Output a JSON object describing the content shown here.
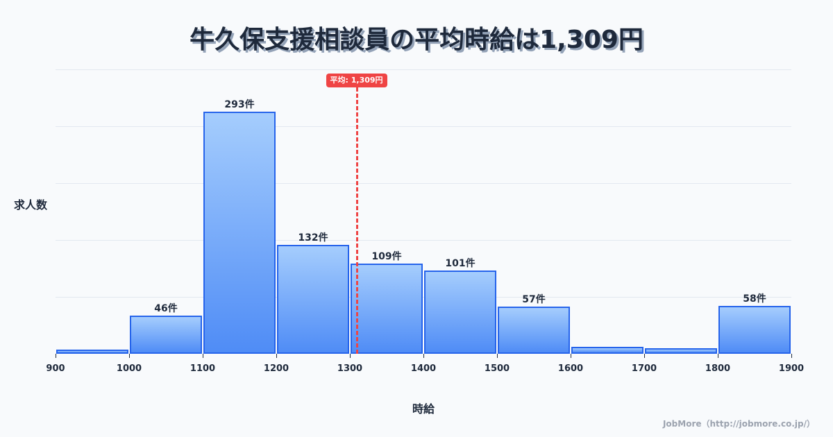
{
  "title": "牛久保支援相談員の平均時給は1,309円",
  "chart_data": {
    "type": "bar",
    "title": "牛久保支援相談員の平均時給は1,309円",
    "xlabel": "時給",
    "ylabel": "求人数",
    "bins": [
      {
        "from": 900,
        "to": 1000,
        "value": 5,
        "label": ""
      },
      {
        "from": 1000,
        "to": 1100,
        "value": 46,
        "label": "46件"
      },
      {
        "from": 1100,
        "to": 1200,
        "value": 293,
        "label": "293件"
      },
      {
        "from": 1200,
        "to": 1300,
        "value": 132,
        "label": "132件"
      },
      {
        "from": 1300,
        "to": 1400,
        "value": 109,
        "label": "109件"
      },
      {
        "from": 1400,
        "to": 1500,
        "value": 101,
        "label": "101件"
      },
      {
        "from": 1500,
        "to": 1600,
        "value": 57,
        "label": "57件"
      },
      {
        "from": 1600,
        "to": 1700,
        "value": 8,
        "label": ""
      },
      {
        "from": 1700,
        "to": 1800,
        "value": 7,
        "label": ""
      },
      {
        "from": 1800,
        "to": 1900,
        "value": 58,
        "label": "58件"
      }
    ],
    "categories": [
      "900-1000",
      "1000-1100",
      "1100-1200",
      "1200-1300",
      "1300-1400",
      "1400-1500",
      "1500-1600",
      "1600-1700",
      "1700-1800",
      "1800-1900"
    ],
    "values": [
      5,
      46,
      293,
      132,
      109,
      101,
      57,
      8,
      7,
      58
    ],
    "x_ticks": [
      "900",
      "1000",
      "1100",
      "1200",
      "1300",
      "1400",
      "1500",
      "1600",
      "1700",
      "1800",
      "1900"
    ],
    "xlim": [
      900,
      1900
    ],
    "ylim": [
      0,
      344
    ],
    "grid": true,
    "mean": {
      "value": 1309,
      "label": "平均: 1,309円",
      "color": "#ef4444"
    },
    "bar_color_top": "#a5cdfd",
    "bar_color_bottom": "#4f8cf6",
    "bar_border": "#2563eb"
  },
  "credit": "JobMore（http://jobmore.co.jp/）"
}
